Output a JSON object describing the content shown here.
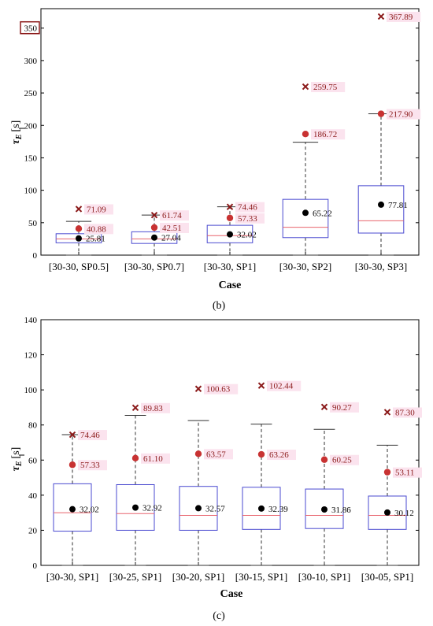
{
  "charts": [
    {
      "panel_label": "(b)",
      "chart_data": {
        "type": "box",
        "xlabel": "Case",
        "ylabel_symbol": "τ",
        "ylabel_sub": "E",
        "ylabel_unit": "[s]",
        "ylim": [
          0,
          380
        ],
        "yticks": [
          0,
          50,
          100,
          150,
          200,
          250,
          300,
          350
        ],
        "highlighted_tick": 350,
        "grid": false,
        "categories": [
          "[30-30, SP0.5]",
          "[30-30, SP0.7]",
          "[30-30, SP1]",
          "[30-30, SP2]",
          "[30-30, SP3]"
        ],
        "boxes": [
          {
            "q1": 19,
            "median": 25,
            "q3": 33,
            "whisker_low": 0,
            "whisker_high": 52
          },
          {
            "q1": 18,
            "median": 25,
            "q3": 36,
            "whisker_low": 0,
            "whisker_high": 61.74
          },
          {
            "q1": 19,
            "median": 30,
            "q3": 46,
            "whisker_low": 0,
            "whisker_high": 74.46
          },
          {
            "q1": 27,
            "median": 43,
            "q3": 86,
            "whisker_low": 0,
            "whisker_high": 174
          },
          {
            "q1": 34,
            "median": 53,
            "q3": 107,
            "whisker_low": 0,
            "whisker_high": 217.9
          }
        ],
        "means": [
          {
            "value": 25.81,
            "label": "25.81"
          },
          {
            "value": 27.04,
            "label": "27.04"
          },
          {
            "value": 32.02,
            "label": "32.02"
          },
          {
            "value": 65.22,
            "label": "65.22"
          },
          {
            "value": 77.81,
            "label": "77.81"
          }
        ],
        "p95": [
          {
            "value": 40.88,
            "label": "40.88"
          },
          {
            "value": 42.51,
            "label": "42.51"
          },
          {
            "value": 57.33,
            "label": "57.33"
          },
          {
            "value": 186.72,
            "label": "186.72"
          },
          {
            "value": 217.9,
            "label": "217.90"
          }
        ],
        "maxima": [
          {
            "value": 71.09,
            "label": "71.09"
          },
          {
            "value": 61.74,
            "label": "61.74"
          },
          {
            "value": 74.46,
            "label": "74.46"
          },
          {
            "value": 259.75,
            "label": "259.75"
          },
          {
            "value": 367.89,
            "label": "367.89"
          }
        ]
      }
    },
    {
      "panel_label": "(c)",
      "chart_data": {
        "type": "box",
        "xlabel": "Case",
        "ylabel_symbol": "τ",
        "ylabel_sub": "E",
        "ylabel_unit": "[s]",
        "ylim": [
          0,
          140
        ],
        "yticks": [
          0,
          20,
          40,
          60,
          80,
          100,
          120,
          140
        ],
        "grid": false,
        "categories": [
          "[30-30, SP1]",
          "[30-25, SP1]",
          "[30-20, SP1]",
          "[30-15, SP1]",
          "[30-10, SP1]",
          "[30-05, SP1]"
        ],
        "boxes": [
          {
            "q1": 19.5,
            "median": 30,
            "q3": 46.5,
            "whisker_low": 0,
            "whisker_high": 74.46
          },
          {
            "q1": 20,
            "median": 29.5,
            "q3": 46,
            "whisker_low": 0,
            "whisker_high": 85.5
          },
          {
            "q1": 20,
            "median": 28.5,
            "q3": 45,
            "whisker_low": 0,
            "whisker_high": 82.5
          },
          {
            "q1": 20.5,
            "median": 28.5,
            "q3": 44.5,
            "whisker_low": 0,
            "whisker_high": 80.5
          },
          {
            "q1": 21,
            "median": 28.5,
            "q3": 43.5,
            "whisker_low": 0,
            "whisker_high": 77.5
          },
          {
            "q1": 20.5,
            "median": 28.5,
            "q3": 39.5,
            "whisker_low": 0,
            "whisker_high": 68.5
          }
        ],
        "means": [
          {
            "value": 32.02,
            "label": "32.02"
          },
          {
            "value": 32.92,
            "label": "32.92"
          },
          {
            "value": 32.57,
            "label": "32.57"
          },
          {
            "value": 32.39,
            "label": "32.39"
          },
          {
            "value": 31.86,
            "label": "31.86"
          },
          {
            "value": 30.12,
            "label": "30.12"
          }
        ],
        "p95": [
          {
            "value": 57.33,
            "label": "57.33"
          },
          {
            "value": 61.1,
            "label": "61.10"
          },
          {
            "value": 63.57,
            "label": "63.57"
          },
          {
            "value": 63.26,
            "label": "63.26"
          },
          {
            "value": 60.25,
            "label": "60.25"
          },
          {
            "value": 53.11,
            "label": "53.11"
          }
        ],
        "maxima": [
          {
            "value": 74.46,
            "label": "74.46"
          },
          {
            "value": 89.83,
            "label": "89.83"
          },
          {
            "value": 100.63,
            "label": "100.63"
          },
          {
            "value": 102.44,
            "label": "102.44"
          },
          {
            "value": 90.27,
            "label": "90.27"
          },
          {
            "value": 87.3,
            "label": "87.30"
          }
        ]
      }
    }
  ],
  "colors": {
    "box": "#4a4ad0",
    "median": "#e8646e",
    "whisker": "#333333",
    "mean": "#000000",
    "p95": "#c83232",
    "max": "#8b1a1a",
    "label": "#8b1a1a",
    "label_bg": "#fbe3ee",
    "axis": "#000000"
  }
}
